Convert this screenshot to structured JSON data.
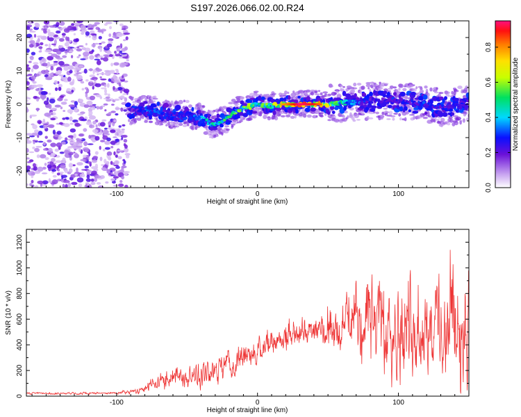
{
  "title": "S197.2026.066.02.00.R24",
  "chart_data": [
    {
      "type": "heatmap",
      "name": "spectrogram",
      "xlabel": "Height of straight line (km)",
      "ylabel": "Frequency (Hz)",
      "xlim": [
        -164,
        150
      ],
      "ylim": [
        -25,
        25
      ],
      "xticks": [
        -100,
        0,
        100
      ],
      "yticks": [
        -20,
        -10,
        0,
        10,
        20
      ],
      "colorbar": {
        "label": "Normalized spectral amplitude",
        "range": [
          0,
          0.95
        ],
        "ticks": [
          "0.0",
          "0.2",
          "0.4",
          "0.6",
          "0.8"
        ],
        "tick_values": [
          0.0,
          0.2,
          0.4,
          0.6,
          0.8
        ]
      },
      "ridge": {
        "description_points_x": [
          -92,
          -80,
          -70,
          -60,
          -50,
          -40,
          -33,
          -25,
          -15,
          -8,
          0,
          10,
          20,
          30,
          40,
          50,
          60,
          70,
          80,
          90,
          100,
          110,
          120,
          130,
          140,
          148
        ],
        "frequency_hz": [
          -2,
          -1.5,
          -2,
          -3,
          -3,
          -4,
          -6,
          -5,
          -2,
          -1,
          0,
          -0.5,
          0,
          0,
          0,
          0,
          0.5,
          0.5,
          1,
          1,
          1,
          0.5,
          0,
          -1,
          -0.5,
          0.5
        ],
        "peak_amplitude": [
          0.2,
          0.35,
          0.35,
          0.3,
          0.3,
          0.4,
          0.55,
          0.55,
          0.6,
          0.65,
          0.55,
          0.7,
          0.8,
          0.95,
          0.9,
          0.75,
          0.55,
          0.4,
          0.3,
          0.25,
          0.3,
          0.3,
          0.35,
          0.3,
          0.3,
          0.3
        ]
      },
      "noise_region_x": [
        -164,
        -92
      ]
    },
    {
      "type": "line",
      "name": "snr",
      "xlabel": "Height of straight line (km)",
      "ylabel": "SNR (10 * v/v)",
      "xlim": [
        -164,
        150
      ],
      "ylim": [
        0,
        1300
      ],
      "xticks": [
        -100,
        0,
        100
      ],
      "yticks": [
        0,
        200,
        400,
        600,
        800,
        1000,
        1200
      ],
      "color": "#ee3333",
      "envelope_x": [
        -164,
        -100,
        -85,
        -80,
        -70,
        -60,
        -50,
        -40,
        -30,
        -20,
        -10,
        0,
        10,
        20,
        30,
        40,
        50,
        60,
        70,
        80,
        90,
        100,
        110,
        120,
        130,
        140,
        150
      ],
      "envelope_mean": [
        20,
        25,
        40,
        60,
        120,
        150,
        140,
        180,
        180,
        260,
        300,
        360,
        400,
        450,
        500,
        520,
        540,
        560,
        560,
        560,
        560,
        540,
        560,
        560,
        560,
        520,
        560
      ],
      "envelope_amp": [
        10,
        12,
        30,
        45,
        90,
        90,
        110,
        160,
        140,
        140,
        120,
        130,
        120,
        180,
        160,
        140,
        180,
        220,
        350,
        420,
        460,
        480,
        500,
        500,
        520,
        540,
        540
      ]
    }
  ]
}
